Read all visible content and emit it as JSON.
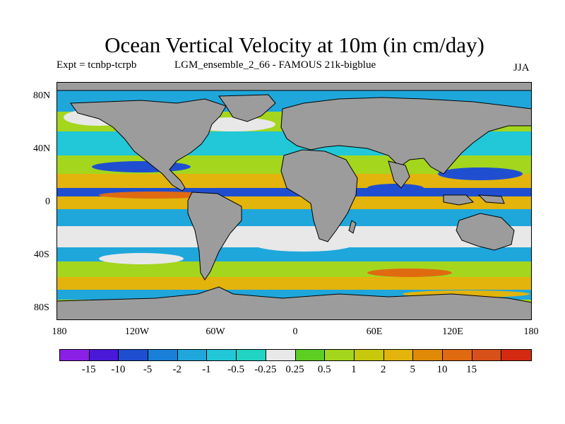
{
  "title": "Ocean Vertical Velocity at 10m (in cm/day)",
  "expt_label": "Expt = tcnbp-tcrpb",
  "run_label": "LGM_ensemble_2_66 - FAMOUS 21k-bigblue",
  "season": "JJA",
  "lat_labels": [
    "80N",
    "40N",
    "0",
    "40S",
    "80S"
  ],
  "lon_labels": [
    "180",
    "120W",
    "60W",
    "0",
    "60E",
    "120E",
    "180"
  ],
  "colorbar": {
    "colors": [
      "#8a1fe6",
      "#4a18d8",
      "#1f4fd0",
      "#1a7fd8",
      "#1fa7dc",
      "#22c7d8",
      "#21d3c2",
      "#e8e8e8",
      "#5ccf22",
      "#a4d61e",
      "#c8c80c",
      "#e2b40c",
      "#e08a08",
      "#e06a10",
      "#d8501a",
      "#d42a12"
    ],
    "labels": [
      "-15",
      "-10",
      "-5",
      "-2",
      "-1",
      "-0.5",
      "-0.25",
      "0.25",
      "0.5",
      "1",
      "2",
      "5",
      "10",
      "15"
    ]
  },
  "land_color": "#9c9c9c"
}
